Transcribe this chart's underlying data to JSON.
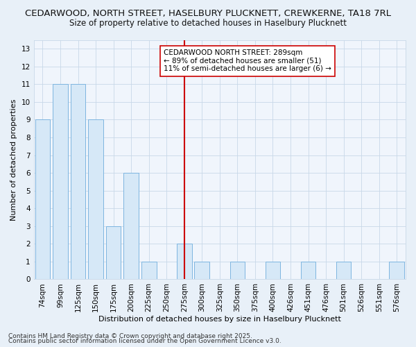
{
  "title1": "CEDARWOOD, NORTH STREET, HASELBURY PLUCKNETT, CREWKERNE, TA18 7RL",
  "title2": "Size of property relative to detached houses in Haselbury Plucknett",
  "xlabel": "Distribution of detached houses by size in Haselbury Plucknett",
  "ylabel": "Number of detached properties",
  "categories": [
    "74sqm",
    "99sqm",
    "125sqm",
    "150sqm",
    "175sqm",
    "200sqm",
    "225sqm",
    "250sqm",
    "275sqm",
    "300sqm",
    "325sqm",
    "350sqm",
    "375sqm",
    "400sqm",
    "426sqm",
    "451sqm",
    "476sqm",
    "501sqm",
    "526sqm",
    "551sqm",
    "576sqm"
  ],
  "values": [
    9,
    11,
    11,
    9,
    3,
    6,
    1,
    0,
    2,
    1,
    0,
    1,
    0,
    1,
    0,
    1,
    0,
    1,
    0,
    0,
    1
  ],
  "bar_color": "#d6e8f7",
  "bar_edge_color": "#7db5e0",
  "highlight_bar_index": 8,
  "highlight_color": "#cc0000",
  "annotation_title": "CEDARWOOD NORTH STREET: 289sqm",
  "annotation_line1": "← 89% of detached houses are smaller (51)",
  "annotation_line2": "11% of semi-detached houses are larger (6) →",
  "ylim": [
    0,
    13.5
  ],
  "yticks": [
    0,
    1,
    2,
    3,
    4,
    5,
    6,
    7,
    8,
    9,
    10,
    11,
    12,
    13
  ],
  "footnote1": "Contains HM Land Registry data © Crown copyright and database right 2025.",
  "footnote2": "Contains public sector information licensed under the Open Government Licence v3.0.",
  "bg_color": "#e8f0f8",
  "plot_bg_color": "#f0f5fc",
  "grid_color": "#c8d8e8",
  "title_fontsize": 9.5,
  "subtitle_fontsize": 8.5,
  "axis_label_fontsize": 8,
  "tick_fontsize": 7.5,
  "annotation_fontsize": 7.5,
  "footnote_fontsize": 6.5
}
